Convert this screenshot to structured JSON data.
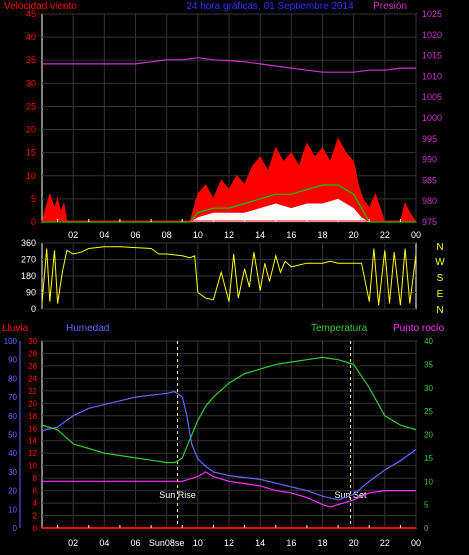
{
  "header": {
    "left_label": "Velocidad viento",
    "center_label": "24 hora gráficas, 01 Septiembre 2014",
    "right_label": "Presión"
  },
  "middle": {
    "compass": [
      "N",
      "W",
      "S",
      "E",
      "N"
    ]
  },
  "bottom_header": {
    "rain_label": "Lluvia",
    "humidity_label": "Humedad",
    "temp_label": "Temperatura",
    "dew_label": "Punto rocío"
  },
  "sun": {
    "rise_label": "Sun Rise",
    "set_label": "Sun Set",
    "rise_hour": 8.7,
    "set_hour": 19.8
  },
  "colors": {
    "wind_speed": "#ff0000",
    "wind_gust_fill": "#ff0000",
    "wind_avg": "#00cc00",
    "wind_min_fill": "#ffffff",
    "pressure": "#cc33cc",
    "direction": "#ffff00",
    "humidity": "#6666ff",
    "temperature": "#33cc33",
    "dew_point": "#ff33ff",
    "rain": "#ff0000",
    "sun_marker": "#ffff99",
    "grid": "#333333"
  },
  "chart_data": [
    {
      "type": "area",
      "title": "24 hora gráficas, 01 Septiembre 2014",
      "x_ticks": [
        "02",
        "04",
        "06",
        "08",
        "10",
        "12",
        "14",
        "16",
        "18",
        "20",
        "22",
        "00"
      ],
      "ylim_left": [
        0,
        45
      ],
      "yticks_left": [
        "0",
        "5",
        "10",
        "15",
        "20",
        "25",
        "30",
        "35",
        "40",
        "45"
      ],
      "ylim_right": [
        975,
        1025
      ],
      "yticks_right": [
        "975",
        "980",
        "985",
        "990",
        "995",
        "1000",
        "1005",
        "1010",
        "1015",
        "1020",
        "1025"
      ],
      "pressure": {
        "x": [
          0,
          2,
          4,
          6,
          8,
          9,
          10,
          11,
          12,
          13,
          14,
          15,
          16,
          17,
          18,
          19,
          20,
          21,
          22,
          23,
          24
        ],
        "y": [
          1013,
          1013,
          1013,
          1013,
          1014,
          1014,
          1014.5,
          1014,
          1013.8,
          1013.5,
          1013,
          1012.5,
          1012,
          1011.5,
          1011,
          1011,
          1011,
          1011.5,
          1011.5,
          1012,
          1012
        ]
      },
      "wind_gust": {
        "x": [
          0,
          0.5,
          0.8,
          1.0,
          1.2,
          1.4,
          1.6,
          2,
          9.5,
          10,
          10.5,
          11,
          11.5,
          12,
          12.5,
          13,
          13.5,
          14,
          14.5,
          15,
          15.5,
          16,
          16.5,
          17,
          17.5,
          18,
          18.5,
          19,
          19.5,
          20,
          20.3,
          20.6,
          21,
          21.4,
          21.8,
          22,
          22.5,
          23,
          23.3,
          23.6,
          24
        ],
        "y": [
          0,
          6,
          3,
          5,
          2,
          4,
          0,
          0,
          0,
          6,
          8,
          5,
          9,
          7,
          10,
          8,
          12,
          14,
          11,
          16,
          13,
          15,
          12,
          17,
          14,
          16,
          13,
          18,
          15,
          13,
          8,
          5,
          3,
          6,
          2,
          0,
          0,
          0,
          4,
          2,
          0
        ]
      },
      "wind_avg": {
        "x": [
          0,
          9.5,
          10,
          11,
          12,
          13,
          14,
          15,
          16,
          17,
          18,
          19,
          20,
          20.5,
          21,
          24
        ],
        "y": [
          0,
          0,
          2,
          3,
          3,
          4,
          5,
          6,
          6,
          7,
          8,
          8,
          6,
          3,
          0,
          0
        ]
      },
      "wind_min": {
        "x": [
          0,
          9.5,
          10,
          11,
          12,
          13,
          14,
          15,
          16,
          17,
          18,
          19,
          20,
          20.5,
          21,
          24
        ],
        "y": [
          0,
          0,
          1,
          2,
          2,
          2,
          3,
          4,
          3,
          4,
          4,
          5,
          3,
          1,
          0,
          0
        ]
      }
    },
    {
      "type": "line",
      "x_ticks": [
        "02",
        "04",
        "06",
        "08",
        "10",
        "12",
        "14",
        "16",
        "18",
        "20",
        "22",
        "00"
      ],
      "ylim": [
        0,
        360
      ],
      "yticks": [
        "0",
        "90",
        "180",
        "270",
        "360"
      ],
      "direction": {
        "x": [
          0,
          0.3,
          0.5,
          0.8,
          1.0,
          1.3,
          1.6,
          2,
          2.5,
          3,
          4,
          5,
          6,
          7,
          7.5,
          8,
          9,
          9.5,
          9.8,
          10,
          10.5,
          11,
          11.5,
          12,
          12.3,
          12.6,
          13,
          13.3,
          13.6,
          14,
          14.3,
          14.6,
          15,
          15.3,
          15.6,
          16,
          16.5,
          17,
          17.5,
          18,
          18.5,
          19,
          19.5,
          20,
          20.5,
          21,
          21.3,
          21.6,
          22,
          22.3,
          22.6,
          23,
          23.3,
          23.6,
          24
        ],
        "y": [
          30,
          330,
          40,
          320,
          30,
          200,
          320,
          300,
          310,
          330,
          340,
          340,
          335,
          330,
          300,
          300,
          290,
          280,
          290,
          90,
          60,
          50,
          200,
          40,
          300,
          60,
          220,
          120,
          310,
          100,
          250,
          150,
          290,
          200,
          260,
          230,
          240,
          250,
          250,
          250,
          260,
          250,
          250,
          250,
          250,
          40,
          330,
          20,
          320,
          30,
          310,
          20,
          330,
          30,
          300
        ]
      }
    },
    {
      "type": "line",
      "x_ticks": [
        "02",
        "04",
        "06",
        "Sun08se",
        "10",
        "12",
        "14",
        "16",
        "18",
        "20",
        "22",
        "00"
      ],
      "ylim_humidity": [
        0,
        100
      ],
      "yticks_humidity": [
        "0",
        "10",
        "20",
        "30",
        "40",
        "50",
        "60",
        "70",
        "80",
        "90",
        "100"
      ],
      "ylim_rain": [
        0,
        30
      ],
      "yticks_rain": [
        "0",
        "2",
        "4",
        "6",
        "8",
        "10",
        "12",
        "14",
        "16",
        "18",
        "20",
        "22",
        "24",
        "26",
        "28",
        "30"
      ],
      "ylim_temp": [
        0,
        40
      ],
      "yticks_temp": [
        "0",
        "5",
        "10",
        "15",
        "20",
        "25",
        "30",
        "35",
        "40"
      ],
      "series": [
        {
          "name": "Humedad",
          "x": [
            0,
            1,
            2,
            3,
            4,
            5,
            6,
            7,
            8,
            8.5,
            9,
            9.3,
            9.6,
            10,
            10.5,
            11,
            12,
            13,
            14,
            15,
            16,
            17,
            18,
            19,
            20,
            21,
            22,
            23,
            24
          ],
          "y": [
            52,
            54,
            60,
            64,
            66,
            68,
            70,
            71,
            72,
            73,
            70,
            60,
            45,
            37,
            33,
            30,
            28,
            27,
            26,
            24,
            22,
            20,
            17,
            15,
            18,
            25,
            31,
            36,
            42
          ]
        },
        {
          "name": "Temperatura",
          "x": [
            0,
            1,
            2,
            3,
            4,
            5,
            6,
            7,
            8,
            8.5,
            9,
            9.5,
            10,
            10.5,
            11,
            12,
            13,
            14,
            15,
            16,
            17,
            18,
            19,
            20,
            21,
            22,
            23,
            24
          ],
          "y": [
            22,
            21,
            18,
            17,
            16,
            15.5,
            15,
            14.5,
            14,
            14,
            15,
            19,
            23,
            26,
            28,
            31,
            33,
            34,
            35,
            35.5,
            36,
            36.5,
            36,
            35,
            30,
            24,
            22,
            21
          ]
        },
        {
          "name": "Punto rocío",
          "x": [
            0,
            1,
            2,
            3,
            4,
            5,
            6,
            7,
            8,
            9,
            10,
            10.5,
            11,
            12,
            13,
            14,
            15,
            16,
            17,
            18,
            18.5,
            19,
            20,
            21,
            22,
            23,
            24
          ],
          "y": [
            10,
            10,
            10,
            10,
            10,
            10,
            10,
            10,
            10,
            10,
            11,
            12,
            11,
            10,
            9.5,
            9,
            8,
            7.5,
            6.5,
            5,
            4.5,
            5,
            6,
            7.5,
            8,
            8,
            8
          ]
        },
        {
          "name": "Lluvia",
          "x": [
            0,
            24
          ],
          "y": [
            0,
            0
          ]
        }
      ]
    }
  ]
}
